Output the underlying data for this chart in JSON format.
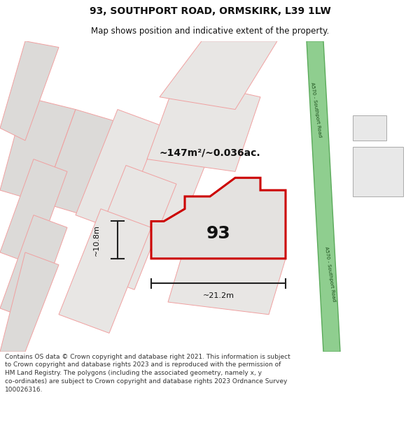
{
  "title_line1": "93, SOUTHPORT ROAD, ORMSKIRK, L39 1LW",
  "title_line2": "Map shows position and indicative extent of the property.",
  "area_label": "~147m²/~0.036ac.",
  "number_label": "93",
  "dim_width": "~21.2m",
  "dim_height": "~10.8m",
  "road_label": "A570 - Southport Road",
  "footer_text": "Contains OS data © Crown copyright and database right 2021. This information is subject to Crown copyright and database rights 2023 and is reproduced with the permission of HM Land Registry. The polygons (including the associated geometry, namely x, y co-ordinates) are subject to Crown copyright and database rights 2023 Ordnance Survey 100026316.",
  "map_bg": "#f2efeb",
  "road_green": "#8fce8f",
  "road_green_edge": "#5aaa5a",
  "property_fill": "#e4e2e0",
  "property_edge": "#cc0000",
  "neighbor_fill": "#dcdad8",
  "neighbor_edge": "#f0a0a0",
  "dim_line_color": "#222222",
  "text_color": "#111111",
  "footer_color": "#333333",
  "title_fontsize": 10,
  "subtitle_fontsize": 8.5,
  "area_fontsize": 10,
  "number_fontsize": 18,
  "dim_fontsize": 8,
  "footer_fontsize": 6.5
}
